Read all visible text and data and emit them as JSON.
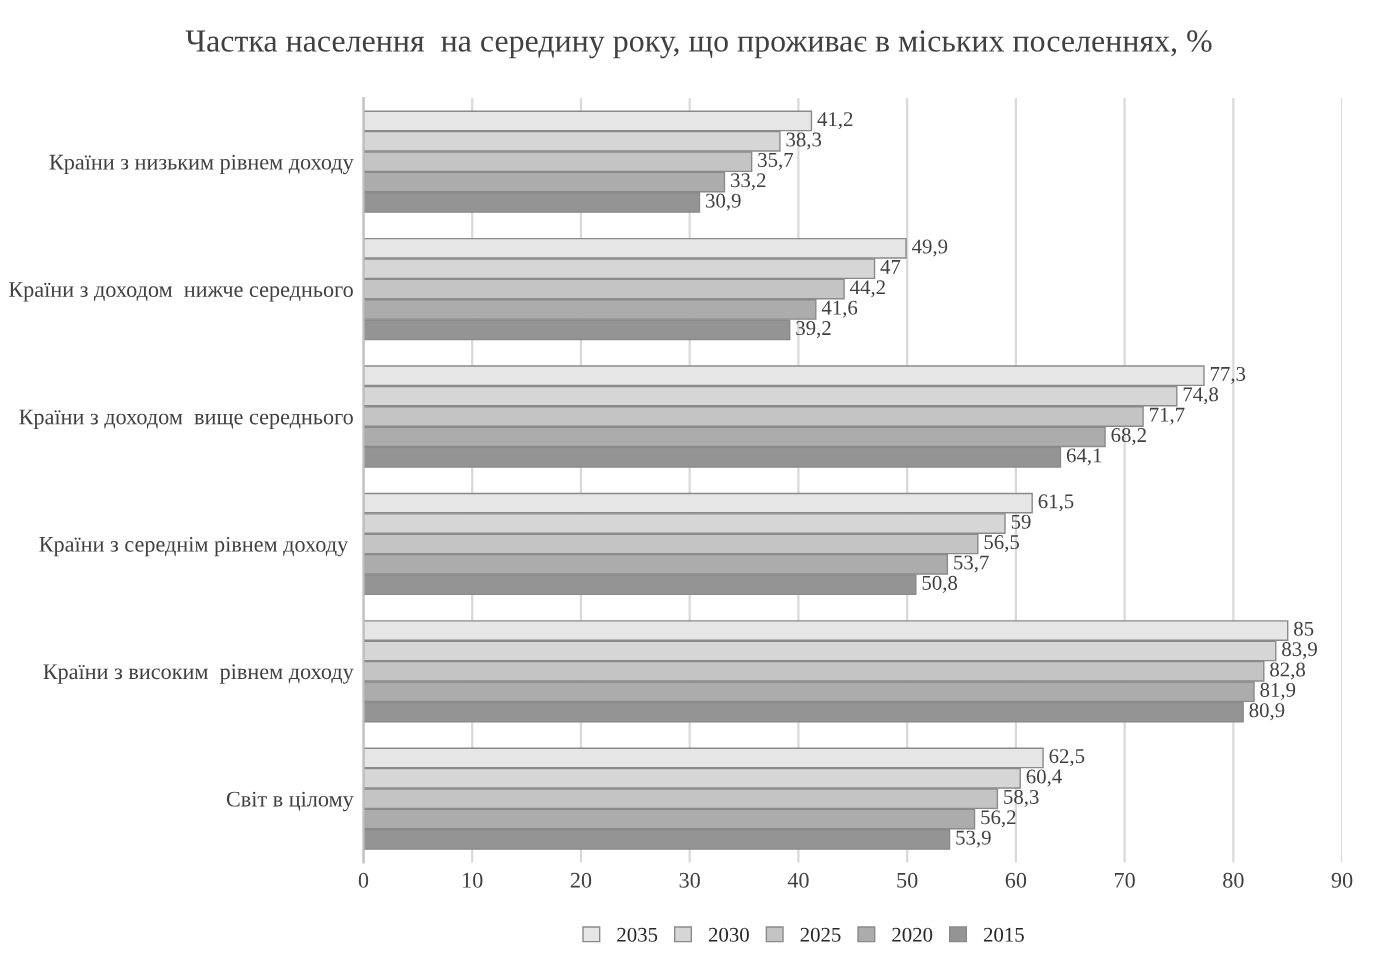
{
  "chart_data": {
    "type": "bar",
    "orientation": "horizontal",
    "title": "Частка населення  на середину року, що проживає в міських поселеннях, %",
    "categories": [
      "Країни з низьким рівнем доходу",
      "Країни з доходом  нижче середнього",
      "Країни з доходом  вище середнього",
      "Країни з середнім рівнем доходу ",
      "Країни з високим  рівнем доходу",
      "Світ в цілому"
    ],
    "series": [
      {
        "name": "2035",
        "color": "#e6e6e6",
        "values": [
          41.2,
          49.9,
          77.3,
          61.5,
          85,
          62.5
        ],
        "value_labels": [
          "41,2",
          "49,9",
          "77,3",
          "61,5",
          "85",
          "62,5"
        ]
      },
      {
        "name": "2030",
        "color": "#d6d6d6",
        "values": [
          38.3,
          47,
          74.8,
          59,
          83.9,
          60.4
        ],
        "value_labels": [
          "38,3",
          "47",
          "74,8",
          "59",
          "83,9",
          "60,4"
        ]
      },
      {
        "name": "2025",
        "color": "#c4c4c4",
        "values": [
          35.7,
          44.2,
          71.7,
          56.5,
          82.8,
          58.3
        ],
        "value_labels": [
          "35,7",
          "44,2",
          "71,7",
          "56,5",
          "82,8",
          "58,3"
        ]
      },
      {
        "name": "2020",
        "color": "#acacac",
        "values": [
          33.2,
          41.6,
          68.2,
          53.7,
          81.9,
          56.2
        ],
        "value_labels": [
          "33,2",
          "41,6",
          "68,2",
          "53,7",
          "81,9",
          "56,2"
        ]
      },
      {
        "name": "2015",
        "color": "#949494",
        "values": [
          30.9,
          39.2,
          64.1,
          50.8,
          80.9,
          53.9
        ],
        "value_labels": [
          "30,9",
          "39,2",
          "64,1",
          "50,8",
          "80,9",
          "53,9"
        ]
      }
    ],
    "xlim": [
      0,
      90
    ],
    "xticks": [
      0,
      10,
      20,
      30,
      40,
      50,
      60,
      70,
      80,
      90
    ],
    "grid": "x",
    "legend": "bottom"
  }
}
